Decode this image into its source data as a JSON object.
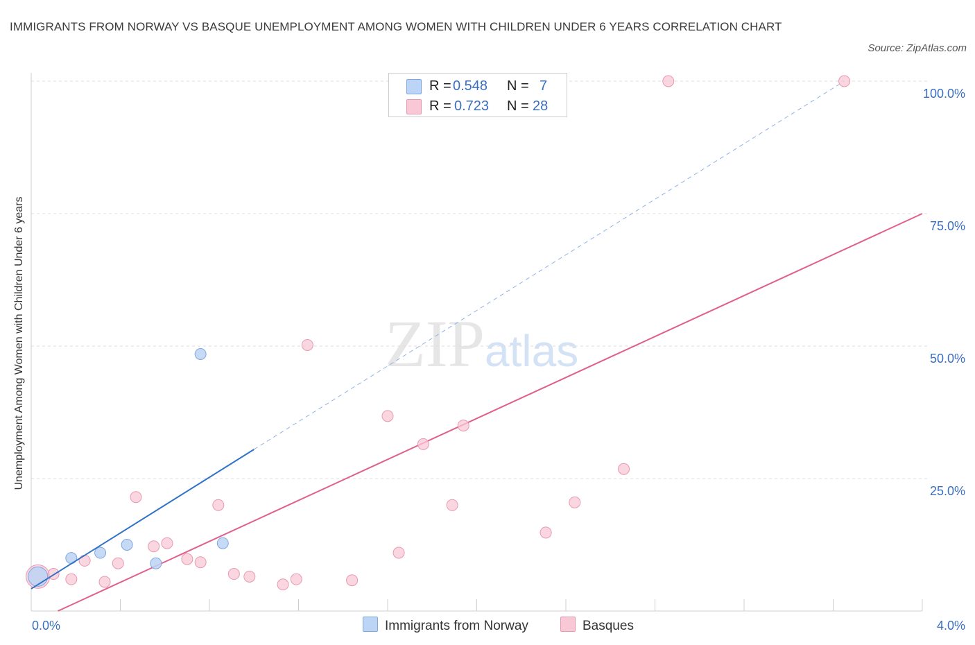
{
  "title": "IMMIGRANTS FROM NORWAY VS BASQUE UNEMPLOYMENT AMONG WOMEN WITH CHILDREN UNDER 6 YEARS CORRELATION CHART",
  "source": "Source: ZipAtlas.com",
  "watermark": {
    "zip": "ZIP",
    "atlas": "atlas"
  },
  "legend": {
    "r_label": "R =",
    "n_label": "N =",
    "rows": [
      {
        "r": "0.548",
        "n": "7"
      },
      {
        "r": "0.723",
        "n": "28"
      }
    ]
  },
  "bottom_legend": [
    "Immigrants from Norway",
    "Basques"
  ],
  "colors": {
    "blue_fill": "#bcd4f5",
    "blue_stroke": "#7fa8e0",
    "blue_line": "#2f72c8",
    "pink_fill": "#f8c8d6",
    "pink_stroke": "#e898b0",
    "pink_line": "#e05f8e",
    "tick": "#3a6fc0",
    "grid": "#dddddd"
  },
  "chart_data": {
    "type": "scatter",
    "title": "IMMIGRANTS FROM NORWAY VS BASQUE UNEMPLOYMENT AMONG WOMEN WITH CHILDREN UNDER 6 YEARS CORRELATION CHART",
    "xlabel": "",
    "ylabel": "Unemployment Among Women with Children Under 6 years",
    "xlim": [
      0,
      4.0
    ],
    "ylim": [
      0,
      100
    ],
    "x_tick_labels": [
      "0.0%",
      "4.0%"
    ],
    "y_tick_labels": [
      "25.0%",
      "50.0%",
      "75.0%",
      "100.0%"
    ],
    "y_ticks": [
      25,
      50,
      75,
      100
    ],
    "grid": true,
    "legend_position": "top-center",
    "series": [
      {
        "name": "Immigrants from Norway",
        "R": 0.548,
        "N": 7,
        "points": [
          {
            "x": 0.03,
            "y": 6.5,
            "size": "large"
          },
          {
            "x": 0.18,
            "y": 10.0
          },
          {
            "x": 0.31,
            "y": 11.0
          },
          {
            "x": 0.43,
            "y": 12.5
          },
          {
            "x": 0.56,
            "y": 9.0
          },
          {
            "x": 0.76,
            "y": 48.5
          },
          {
            "x": 0.86,
            "y": 12.8
          }
        ],
        "trend_solid": [
          [
            0.0,
            4.2
          ],
          [
            1.0,
            30.5
          ]
        ],
        "trend_dashed": [
          [
            1.0,
            30.5
          ],
          [
            3.65,
            100.0
          ]
        ]
      },
      {
        "name": "Basques",
        "R": 0.723,
        "N": 28,
        "points": [
          {
            "x": 0.03,
            "y": 6.5,
            "size": "large"
          },
          {
            "x": 0.1,
            "y": 7.0
          },
          {
            "x": 0.18,
            "y": 6.0
          },
          {
            "x": 0.24,
            "y": 9.5
          },
          {
            "x": 0.33,
            "y": 5.5
          },
          {
            "x": 0.39,
            "y": 9.0
          },
          {
            "x": 0.47,
            "y": 21.5
          },
          {
            "x": 0.55,
            "y": 12.2
          },
          {
            "x": 0.61,
            "y": 12.8
          },
          {
            "x": 0.7,
            "y": 9.8
          },
          {
            "x": 0.76,
            "y": 9.2
          },
          {
            "x": 0.84,
            "y": 20.0
          },
          {
            "x": 0.91,
            "y": 7.0
          },
          {
            "x": 0.98,
            "y": 6.5
          },
          {
            "x": 1.13,
            "y": 5.0
          },
          {
            "x": 1.19,
            "y": 6.0
          },
          {
            "x": 1.24,
            "y": 50.2
          },
          {
            "x": 1.44,
            "y": 5.8
          },
          {
            "x": 1.6,
            "y": 36.8
          },
          {
            "x": 1.65,
            "y": 11.0
          },
          {
            "x": 1.76,
            "y": 31.5
          },
          {
            "x": 1.89,
            "y": 20.0
          },
          {
            "x": 1.94,
            "y": 35.0
          },
          {
            "x": 2.31,
            "y": 14.8
          },
          {
            "x": 2.44,
            "y": 20.5
          },
          {
            "x": 2.66,
            "y": 26.8
          },
          {
            "x": 2.86,
            "y": 100.0
          },
          {
            "x": 3.65,
            "y": 100.0
          }
        ],
        "trend_solid": [
          [
            0.12,
            0.0
          ],
          [
            4.0,
            75.0
          ]
        ]
      }
    ]
  }
}
